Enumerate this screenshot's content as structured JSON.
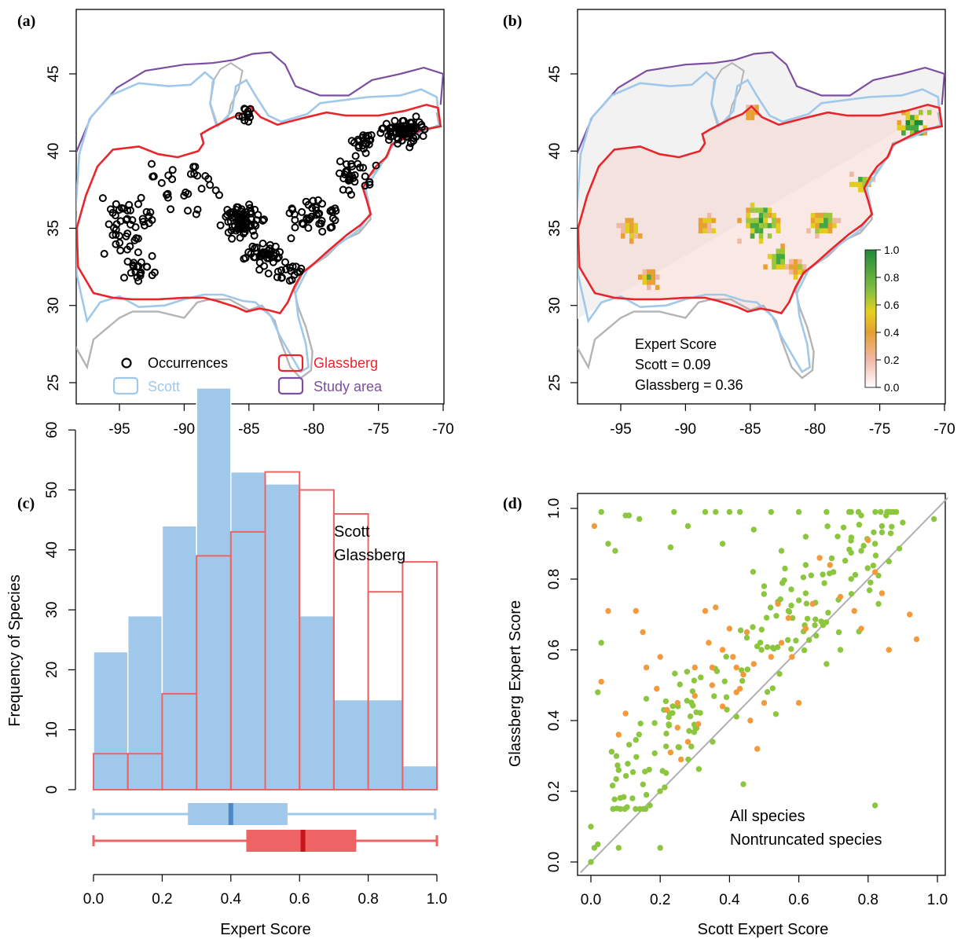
{
  "panels": {
    "a": {
      "label": "(a)"
    },
    "b": {
      "label": "(b)"
    },
    "c": {
      "label": "(c)"
    },
    "d": {
      "label": "(d)"
    }
  },
  "colors": {
    "scott": "#a0c8ea",
    "scott_dark": "#4f86c6",
    "glassberg": "#e8252b",
    "glassberg_box": "#ee6464",
    "glassberg_dark": "#c4161c",
    "study_area": "#7c4ea0",
    "coast": "#b4b4b4",
    "all_species": "#8cc63f",
    "nontruncated": "#f49a3c",
    "occurrence": "#000000"
  },
  "chart_data": [
    {
      "panel": "a",
      "type": "scatter",
      "description_units": "degrees",
      "x_ticks": [
        "-95",
        "-90",
        "-85",
        "-80",
        "-75",
        "-70"
      ],
      "y_ticks": [
        "25",
        "30",
        "35",
        "40",
        "45"
      ],
      "xlim": [
        -99,
        -70
      ],
      "ylim": [
        24,
        49
      ],
      "legend": [
        "Occurrences",
        "Scott",
        "Glassberg",
        "Study area"
      ],
      "occurrence_clusters": [
        {
          "x": -85.5,
          "y": 35.5,
          "n": 80,
          "sx": 1.4,
          "sy": 0.9
        },
        {
          "x": -84,
          "y": 33.3,
          "n": 40,
          "sx": 1.2,
          "sy": 0.8
        },
        {
          "x": -73,
          "y": 41.3,
          "n": 70,
          "sx": 1.5,
          "sy": 0.8
        },
        {
          "x": -94.5,
          "y": 35,
          "n": 45,
          "sx": 1.8,
          "sy": 2.2
        },
        {
          "x": -80,
          "y": 36,
          "n": 40,
          "sx": 1.8,
          "sy": 1.2
        },
        {
          "x": -77,
          "y": 38.5,
          "n": 30,
          "sx": 1.2,
          "sy": 1.2
        },
        {
          "x": -90,
          "y": 37.5,
          "n": 30,
          "sx": 2.5,
          "sy": 1.5
        },
        {
          "x": -85,
          "y": 42.3,
          "n": 12,
          "sx": 0.6,
          "sy": 0.5
        },
        {
          "x": -82,
          "y": 32,
          "n": 18,
          "sx": 1.2,
          "sy": 0.8
        },
        {
          "x": -93.5,
          "y": 32.2,
          "n": 20,
          "sx": 1,
          "sy": 0.7
        },
        {
          "x": -76,
          "y": 40.5,
          "n": 20,
          "sx": 1,
          "sy": 0.6
        }
      ]
    },
    {
      "panel": "b",
      "type": "heatmap",
      "x_ticks": [
        "-95",
        "-90",
        "-85",
        "-80",
        "-75",
        "-70"
      ],
      "y_ticks": [
        "25",
        "30",
        "35",
        "40",
        "45"
      ],
      "xlim": [
        -99,
        -70
      ],
      "ylim": [
        24,
        49
      ],
      "colorbar_ticks": [
        "1.0",
        "0.8",
        "0.6",
        "0.4",
        "0.2",
        "0.0"
      ],
      "colorbar_range": [
        0,
        1
      ],
      "annotation": {
        "title": "Expert Score",
        "scott": "Scott = 0.09",
        "glassberg": "Glassberg = 0.36"
      },
      "hotspots": [
        {
          "x": -84.5,
          "y": 35.5,
          "r": 1.6,
          "v": 0.85
        },
        {
          "x": -83,
          "y": 33.2,
          "r": 1.1,
          "v": 0.75
        },
        {
          "x": -72.5,
          "y": 41.8,
          "r": 1.3,
          "v": 0.95
        },
        {
          "x": -79.5,
          "y": 35.5,
          "r": 1.3,
          "v": 0.7
        },
        {
          "x": -76.5,
          "y": 38,
          "r": 0.9,
          "v": 0.7
        },
        {
          "x": -94.5,
          "y": 35,
          "r": 1,
          "v": 0.55
        },
        {
          "x": -93,
          "y": 32,
          "r": 0.9,
          "v": 0.6
        },
        {
          "x": -88.5,
          "y": 35.3,
          "r": 0.9,
          "v": 0.45
        },
        {
          "x": -85,
          "y": 42.7,
          "r": 0.5,
          "v": 0.4
        },
        {
          "x": -81.5,
          "y": 32.5,
          "r": 0.8,
          "v": 0.5
        }
      ]
    },
    {
      "panel": "c",
      "type": "bar",
      "xlabel": "Expert Score",
      "ylabel": "Frequency of Species",
      "x_ticks": [
        "0.0",
        "0.2",
        "0.4",
        "0.6",
        "0.8",
        "1.0"
      ],
      "y_ticks": [
        "0",
        "10",
        "20",
        "30",
        "40",
        "50",
        "60"
      ],
      "ylim": [
        0,
        68
      ],
      "bin_edges": [
        0,
        0.1,
        0.2,
        0.3,
        0.4,
        0.5,
        0.6,
        0.7,
        0.8,
        0.9,
        1.0
      ],
      "series": [
        {
          "name": "Scott",
          "values": [
            23,
            29,
            44,
            67,
            53,
            51,
            29,
            15,
            15,
            4
          ]
        },
        {
          "name": "Glassberg",
          "values": [
            6,
            6,
            16,
            39,
            43,
            53,
            50,
            46,
            33,
            38
          ]
        }
      ],
      "boxplots": [
        {
          "name": "Scott",
          "min": 0.0,
          "q1": 0.275,
          "median": 0.4,
          "q3": 0.565,
          "max": 0.995
        },
        {
          "name": "Glassberg",
          "min": 0.0,
          "q1": 0.445,
          "median": 0.61,
          "q3": 0.765,
          "max": 1.0
        }
      ]
    },
    {
      "panel": "d",
      "type": "scatter",
      "xlabel": "Scott Expert Score",
      "ylabel": "Glassberg Expert Score",
      "x_ticks": [
        "0.0",
        "0.2",
        "0.4",
        "0.6",
        "0.8",
        "1.0"
      ],
      "y_ticks": [
        "0.0",
        "0.2",
        "0.4",
        "0.6",
        "0.8",
        "1.0"
      ],
      "xlim": [
        -0.03,
        1.03
      ],
      "ylim": [
        -0.03,
        1.03
      ],
      "legend": [
        "All species",
        "Nontruncated species"
      ],
      "series": [
        {
          "name": "All species",
          "points": [
            [
              0.0,
              0.0
            ],
            [
              0.01,
              0.04
            ],
            [
              0.02,
              0.05
            ],
            [
              0.0,
              0.1
            ],
            [
              0.08,
              0.04
            ],
            [
              0.2,
              0.04
            ],
            [
              0.82,
              0.16
            ],
            [
              0.44,
              0.22
            ],
            [
              0.03,
              0.62
            ],
            [
              0.02,
              0.48
            ],
            [
              0.05,
              0.9
            ],
            [
              0.07,
              0.88
            ],
            [
              0.03,
              0.99
            ],
            [
              0.1,
              0.98
            ],
            [
              0.14,
              0.97
            ],
            [
              0.11,
              0.98
            ],
            [
              0.24,
              0.99
            ],
            [
              0.33,
              0.99
            ],
            [
              0.36,
              0.99
            ],
            [
              0.4,
              0.99
            ],
            [
              0.43,
              0.99
            ],
            [
              0.52,
              0.99
            ],
            [
              0.6,
              0.99
            ],
            [
              0.68,
              0.99
            ],
            [
              0.78,
              0.98
            ],
            [
              0.84,
              0.95
            ],
            [
              0.9,
              0.96
            ],
            [
              0.99,
              0.97
            ],
            [
              0.23,
              0.89
            ],
            [
              0.28,
              0.95
            ],
            [
              0.38,
              0.9
            ],
            [
              0.47,
              0.94
            ],
            [
              0.55,
              0.88
            ],
            [
              0.62,
              0.92
            ],
            [
              0.78,
              0.88
            ],
            [
              0.82,
              0.9
            ],
            [
              0.83,
              0.81
            ],
            [
              0.86,
              0.85
            ],
            [
              0.17,
              0.16
            ],
            [
              0.12,
              0.18
            ],
            [
              0.16,
              0.19
            ],
            [
              0.08,
              0.26
            ],
            [
              0.83,
              0.73
            ],
            [
              0.67,
              0.67
            ],
            [
              0.72,
              0.6
            ],
            [
              0.68,
              0.56
            ],
            [
              0.5,
              0.78
            ],
            [
              0.56,
              0.83
            ],
            [
              0.62,
              0.84
            ],
            [
              0.7,
              0.82
            ],
            [
              0.62,
              0.76
            ],
            [
              0.6,
              0.74
            ],
            [
              0.57,
              0.71
            ],
            [
              0.65,
              0.64
            ]
          ]
        },
        {
          "name": "Nontruncated species",
          "points": [
            [
              0.01,
              0.95
            ],
            [
              0.03,
              0.51
            ],
            [
              0.05,
              0.71
            ],
            [
              0.08,
              0.36
            ],
            [
              0.1,
              0.42
            ],
            [
              0.13,
              0.71
            ],
            [
              0.15,
              0.65
            ],
            [
              0.16,
              0.55
            ],
            [
              0.19,
              0.49
            ],
            [
              0.2,
              0.58
            ],
            [
              0.22,
              0.43
            ],
            [
              0.23,
              0.31
            ],
            [
              0.25,
              0.38
            ],
            [
              0.26,
              0.29
            ],
            [
              0.28,
              0.34
            ],
            [
              0.3,
              0.47
            ],
            [
              0.31,
              0.39
            ],
            [
              0.33,
              0.71
            ],
            [
              0.34,
              0.62
            ],
            [
              0.35,
              0.55
            ],
            [
              0.36,
              0.72
            ],
            [
              0.38,
              0.6
            ],
            [
              0.4,
              0.66
            ],
            [
              0.41,
              0.58
            ],
            [
              0.42,
              0.55
            ],
            [
              0.43,
              0.49
            ],
            [
              0.44,
              0.53
            ],
            [
              0.45,
              0.65
            ],
            [
              0.46,
              0.4
            ],
            [
              0.47,
              0.56
            ],
            [
              0.48,
              0.32
            ],
            [
              0.5,
              0.45
            ],
            [
              0.52,
              0.58
            ],
            [
              0.54,
              0.73
            ],
            [
              0.55,
              0.62
            ],
            [
              0.57,
              0.69
            ],
            [
              0.58,
              0.58
            ],
            [
              0.6,
              0.45
            ],
            [
              0.62,
              0.66
            ],
            [
              0.64,
              0.73
            ],
            [
              0.66,
              0.86
            ],
            [
              0.69,
              0.84
            ],
            [
              0.72,
              0.75
            ],
            [
              0.76,
              0.71
            ],
            [
              0.78,
              0.66
            ],
            [
              0.8,
              0.91
            ],
            [
              0.82,
              0.82
            ],
            [
              0.84,
              0.76
            ],
            [
              0.86,
              0.6
            ],
            [
              0.92,
              0.7
            ],
            [
              0.94,
              0.63
            ],
            [
              0.25,
              0.45
            ],
            [
              0.3,
              0.55
            ],
            [
              0.38,
              0.44
            ],
            [
              0.42,
              0.48
            ],
            [
              0.35,
              0.5
            ]
          ]
        }
      ]
    }
  ]
}
